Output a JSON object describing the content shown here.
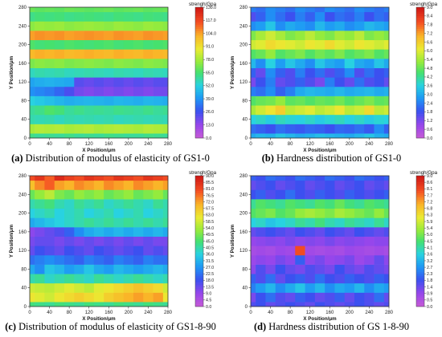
{
  "chart_data": [
    {
      "type": "heatmap",
      "panel_label": "(a)",
      "caption": "Distribution of modulus of elasticity of GS1-0",
      "xlabel": "X Position/μm",
      "ylabel": "Y Position/μm",
      "colorbar_title": "strengh/Gpa",
      "x_ticks": [
        "0",
        "40",
        "80",
        "120",
        "160",
        "200",
        "240",
        "280"
      ],
      "y_ticks": [
        "0",
        "40",
        "80",
        "120",
        "160",
        "200",
        "240",
        "280"
      ],
      "colorbar_ticks": [
        "0.0",
        "13.0",
        "26.0",
        "39.0",
        "52.0",
        "65.0",
        "78.0",
        "91.0",
        "104.0",
        "117.0",
        "130.0"
      ],
      "vmin": 0,
      "vmax": 130,
      "x": [
        0,
        20,
        40,
        60,
        80,
        100,
        120,
        140,
        160,
        180,
        200,
        220,
        240,
        260,
        280
      ],
      "y": [
        0,
        20,
        40,
        60,
        80,
        100,
        120,
        140,
        160,
        180,
        200,
        220,
        240,
        260,
        280
      ],
      "z": [
        [
          62,
          60,
          61,
          60,
          62,
          60,
          61,
          60,
          62,
          61,
          60,
          60,
          62,
          61,
          60
        ],
        [
          78,
          80,
          79,
          80,
          78,
          79,
          80,
          78,
          79,
          80,
          79,
          78,
          80,
          79,
          78
        ],
        [
          58,
          57,
          58,
          56,
          58,
          57,
          58,
          57,
          58,
          56,
          57,
          58,
          57,
          58,
          57
        ],
        [
          60,
          62,
          66,
          64,
          60,
          62,
          60,
          61,
          60,
          62,
          61,
          60,
          62,
          60,
          61
        ],
        [
          52,
          50,
          48,
          46,
          44,
          45,
          46,
          45,
          44,
          46,
          45,
          44,
          46,
          45,
          44
        ],
        [
          38,
          36,
          34,
          30,
          24,
          18,
          16,
          18,
          16,
          18,
          16,
          18,
          16,
          18,
          18
        ],
        [
          42,
          44,
          45,
          44,
          43,
          22,
          20,
          22,
          20,
          22,
          20,
          22,
          20,
          22,
          22
        ],
        [
          56,
          58,
          57,
          58,
          56,
          57,
          58,
          57,
          56,
          58,
          57,
          56,
          58,
          57,
          56
        ],
        [
          72,
          74,
          73,
          74,
          72,
          73,
          74,
          73,
          72,
          74,
          73,
          72,
          74,
          73,
          72
        ],
        [
          100,
          102,
          101,
          102,
          100,
          101,
          102,
          101,
          100,
          102,
          101,
          100,
          102,
          101,
          100
        ],
        [
          66,
          64,
          65,
          64,
          66,
          65,
          64,
          65,
          66,
          64,
          65,
          66,
          64,
          65,
          66
        ],
        [
          104,
          106,
          105,
          106,
          104,
          105,
          106,
          105,
          104,
          106,
          105,
          104,
          106,
          105,
          104
        ],
        [
          74,
          76,
          75,
          76,
          74,
          75,
          76,
          75,
          74,
          76,
          75,
          74,
          76,
          75,
          74
        ],
        [
          62,
          64,
          63,
          64,
          62,
          63,
          64,
          63,
          62,
          64,
          63,
          62,
          64,
          63,
          62
        ],
        [
          70,
          68,
          69,
          68,
          70,
          69,
          68,
          69,
          70,
          68,
          69,
          70,
          68,
          69,
          70
        ]
      ]
    },
    {
      "type": "heatmap",
      "panel_label": "(b)",
      "caption": "Hardness distribution of GS1-0",
      "xlabel": "X Position/μm",
      "ylabel": "Y Position/μm",
      "colorbar_title": "strengh/Gpa",
      "x_ticks": [
        "0",
        "40",
        "80",
        "120",
        "160",
        "200",
        "240",
        "280"
      ],
      "y_ticks": [
        "0",
        "40",
        "80",
        "120",
        "160",
        "200",
        "240",
        "280"
      ],
      "colorbar_ticks": [
        "0.0",
        "0.6",
        "1.2",
        "1.8",
        "2.4",
        "3.0",
        "3.6",
        "4.2",
        "4.8",
        "5.4",
        "6.0",
        "6.6",
        "7.2",
        "7.8",
        "8.4",
        "9.0"
      ],
      "vmin": 0,
      "vmax": 9,
      "x": [
        0,
        20,
        40,
        60,
        80,
        100,
        120,
        140,
        160,
        180,
        200,
        220,
        240,
        260,
        280
      ],
      "y": [
        0,
        20,
        40,
        60,
        80,
        100,
        120,
        140,
        160,
        180,
        200,
        220,
        240,
        260,
        280
      ],
      "z": [
        [
          3.0,
          3.2,
          3.1,
          3.4,
          3.2,
          3.0,
          3.1,
          3.3,
          3.2,
          3.1,
          3.0,
          3.2,
          3.4,
          3.1,
          3.0
        ],
        [
          2.2,
          2.0,
          1.8,
          2.2,
          2.0,
          1.9,
          2.1,
          2.0,
          1.8,
          2.1,
          2.0,
          2.2,
          1.9,
          2.6,
          2.0
        ],
        [
          3.6,
          3.8,
          3.5,
          3.9,
          3.7,
          3.6,
          3.8,
          3.5,
          3.7,
          3.9,
          3.6,
          3.8,
          3.5,
          3.7,
          3.6
        ],
        [
          5.4,
          5.8,
          6.2,
          6.6,
          5.6,
          5.8,
          6.0,
          5.6,
          5.8,
          6.2,
          5.6,
          5.8,
          6.4,
          5.6,
          5.8
        ],
        [
          4.6,
          4.8,
          4.9,
          5.2,
          4.7,
          4.8,
          4.6,
          4.8,
          4.7,
          4.9,
          4.6,
          4.8,
          5.0,
          4.7,
          4.8
        ],
        [
          2.4,
          2.2,
          2.6,
          2.0,
          2.4,
          3.0,
          3.2,
          3.1,
          3.0,
          3.2,
          3.0,
          3.1,
          3.2,
          3.0,
          3.1
        ],
        [
          1.2,
          1.8,
          2.4,
          1.4,
          1.6,
          2.0,
          1.6,
          1.2,
          2.4,
          1.8,
          1.4,
          2.2,
          1.6,
          1.8,
          1.4
        ],
        [
          2.0,
          1.4,
          2.6,
          2.0,
          1.6,
          2.4,
          1.8,
          2.2,
          1.6,
          2.0,
          2.6,
          1.6,
          2.2,
          1.8,
          2.0
        ],
        [
          3.2,
          2.6,
          3.6,
          2.8,
          3.4,
          3.0,
          2.6,
          3.4,
          3.0,
          2.8,
          3.6,
          3.0,
          2.8,
          3.4,
          3.0
        ],
        [
          4.6,
          4.8,
          5.2,
          4.6,
          4.8,
          5.0,
          4.6,
          4.9,
          4.7,
          5.0,
          4.6,
          4.8,
          5.0,
          4.6,
          4.8
        ],
        [
          5.8,
          6.0,
          6.4,
          6.2,
          6.0,
          5.8,
          6.2,
          6.0,
          6.4,
          6.0,
          5.8,
          6.2,
          6.0,
          5.8,
          6.0
        ],
        [
          5.0,
          5.4,
          5.8,
          5.4,
          5.0,
          5.2,
          5.6,
          5.2,
          5.0,
          5.4,
          5.2,
          5.6,
          5.0,
          5.2,
          5.0
        ],
        [
          2.6,
          2.8,
          3.4,
          2.6,
          3.0,
          2.8,
          2.6,
          3.2,
          2.8,
          3.0,
          2.6,
          2.8,
          3.2,
          3.0,
          2.8
        ],
        [
          1.6,
          2.0,
          2.6,
          2.2,
          1.8,
          2.4,
          2.0,
          2.6,
          1.8,
          2.2,
          2.0,
          2.4,
          1.8,
          2.2,
          2.0
        ],
        [
          2.4,
          2.2,
          2.6,
          2.4,
          2.2,
          2.6,
          2.4,
          2.2,
          2.6,
          2.4,
          2.2,
          2.6,
          2.4,
          2.2,
          2.4
        ]
      ]
    },
    {
      "type": "heatmap",
      "panel_label": "(c)",
      "caption": "Distribution of modulus of elasticity of GS1-8-90",
      "xlabel": "X Position/μm",
      "ylabel": "Y Position/μm",
      "colorbar_title": "strengh/Gpa",
      "x_ticks": [
        "0",
        "40",
        "80",
        "120",
        "160",
        "200",
        "240",
        "280"
      ],
      "y_ticks": [
        "0",
        "40",
        "80",
        "120",
        "160",
        "200",
        "240",
        "280"
      ],
      "colorbar_ticks": [
        "0.0",
        "4.5",
        "9.0",
        "13.5",
        "18.0",
        "22.5",
        "27.0",
        "31.5",
        "36.0",
        "40.5",
        "45.0",
        "49.5",
        "54.0",
        "58.5",
        "63.0",
        "67.5",
        "72.0",
        "76.5",
        "81.0",
        "85.5",
        "90.0"
      ],
      "vmin": 0,
      "vmax": 90,
      "x": [
        0,
        20,
        40,
        60,
        80,
        100,
        120,
        140,
        160,
        180,
        200,
        220,
        240,
        260,
        280
      ],
      "y": [
        0,
        20,
        40,
        60,
        80,
        100,
        120,
        140,
        160,
        180,
        200,
        220,
        240,
        260,
        280
      ],
      "z": [
        [
          44,
          43,
          42,
          44,
          43,
          42,
          44,
          43,
          42,
          44,
          43,
          42,
          44,
          43,
          42
        ],
        [
          62,
          60,
          58,
          62,
          64,
          66,
          64,
          62,
          66,
          68,
          70,
          72,
          70,
          72,
          62
        ],
        [
          58,
          57,
          56,
          58,
          60,
          58,
          56,
          60,
          62,
          64,
          66,
          68,
          66,
          64,
          58
        ],
        [
          40,
          42,
          38,
          40,
          42,
          40,
          38,
          42,
          40,
          38,
          40,
          42,
          40,
          38,
          40
        ],
        [
          30,
          26,
          34,
          32,
          28,
          30,
          34,
          30,
          28,
          32,
          30,
          28,
          30,
          32,
          30
        ],
        [
          22,
          24,
          26,
          24,
          22,
          20,
          24,
          22,
          20,
          24,
          22,
          20,
          24,
          22,
          22
        ],
        [
          14,
          18,
          16,
          14,
          18,
          16,
          14,
          18,
          16,
          14,
          16,
          18,
          14,
          16,
          14
        ],
        [
          12,
          14,
          14,
          12,
          14,
          12,
          14,
          12,
          14,
          12,
          14,
          12,
          14,
          12,
          12
        ],
        [
          10,
          12,
          14,
          16,
          20,
          26,
          30,
          32,
          30,
          32,
          30,
          32,
          30,
          32,
          30
        ],
        [
          30,
          32,
          34,
          36,
          38,
          40,
          42,
          40,
          42,
          40,
          42,
          40,
          42,
          40,
          42
        ],
        [
          36,
          38,
          40,
          36,
          38,
          40,
          36,
          38,
          40,
          36,
          38,
          40,
          36,
          38,
          40
        ],
        [
          40,
          42,
          44,
          40,
          38,
          42,
          40,
          42,
          38,
          40,
          42,
          40,
          38,
          42,
          40
        ],
        [
          48,
          52,
          56,
          50,
          48,
          52,
          50,
          52,
          48,
          50,
          52,
          48,
          50,
          52,
          48
        ],
        [
          68,
          74,
          78,
          72,
          70,
          74,
          72,
          70,
          74,
          72,
          70,
          74,
          72,
          70,
          72
        ],
        [
          80,
          84,
          78,
          86,
          82,
          80,
          84,
          82,
          80,
          84,
          82,
          80,
          84,
          82,
          80
        ]
      ]
    },
    {
      "type": "heatmap",
      "panel_label": "(d)",
      "caption": "Hardness distribution of GS 1-8-90",
      "xlabel": "X Position/μm",
      "ylabel": "Y Position/μm",
      "colorbar_title": "strengh/Gpa",
      "x_ticks": [
        "0",
        "40",
        "80",
        "120",
        "160",
        "200",
        "240",
        "280"
      ],
      "y_ticks": [
        "0",
        "40",
        "80",
        "120",
        "160",
        "200",
        "240",
        "280"
      ],
      "colorbar_ticks": [
        "0.0",
        "0.5",
        "0.9",
        "1.4",
        "1.8",
        "2.3",
        "2.7",
        "3.2",
        "3.6",
        "4.1",
        "4.5",
        "5.0",
        "5.4",
        "5.9",
        "6.3",
        "6.8",
        "7.2",
        "7.7",
        "8.1",
        "8.6",
        "9.0"
      ],
      "vmin": 0,
      "vmax": 9,
      "x": [
        0,
        20,
        40,
        60,
        80,
        100,
        120,
        140,
        160,
        180,
        200,
        220,
        240,
        260,
        280
      ],
      "y": [
        0,
        20,
        40,
        60,
        80,
        100,
        120,
        140,
        160,
        180,
        200,
        220,
        240,
        260,
        280
      ],
      "z": [
        [
          1.6,
          1.8,
          1.4,
          1.6,
          1.8,
          1.6,
          1.4,
          1.8,
          1.6,
          1.4,
          1.6,
          1.8,
          1.6,
          1.4,
          1.6
        ],
        [
          1.2,
          1.8,
          2.2,
          1.6,
          1.4,
          2.0,
          1.8,
          1.4,
          1.6,
          2.0,
          1.4,
          1.8,
          1.6,
          2.2,
          1.4
        ],
        [
          2.4,
          2.8,
          3.2,
          2.6,
          3.0,
          3.4,
          2.8,
          3.2,
          2.6,
          3.0,
          2.8,
          3.2,
          2.6,
          3.0,
          2.8
        ],
        [
          2.0,
          1.6,
          2.2,
          1.4,
          1.8,
          2.0,
          1.6,
          2.2,
          1.8,
          1.6,
          2.0,
          1.8,
          1.6,
          2.0,
          1.8
        ],
        [
          1.0,
          1.6,
          1.2,
          1.8,
          1.4,
          1.2,
          1.6,
          1.4,
          1.2,
          1.8,
          1.4,
          1.2,
          1.6,
          1.4,
          1.2
        ],
        [
          0.8,
          1.0,
          0.9,
          1.2,
          1.0,
          2.0,
          1.0,
          1.2,
          0.9,
          1.0,
          1.2,
          0.8,
          1.0,
          1.4,
          1.0
        ],
        [
          0.6,
          0.7,
          0.6,
          0.8,
          0.7,
          8.0,
          0.7,
          0.6,
          0.7,
          0.6,
          0.8,
          0.7,
          0.6,
          0.7,
          0.6
        ],
        [
          0.9,
          1.0,
          1.1,
          1.0,
          1.2,
          1.0,
          1.1,
          1.0,
          1.2,
          1.0,
          1.1,
          1.0,
          0.9,
          1.0,
          1.0
        ],
        [
          1.4,
          1.6,
          1.8,
          1.6,
          1.4,
          1.8,
          1.6,
          1.4,
          1.8,
          1.6,
          1.4,
          1.8,
          1.6,
          1.4,
          1.6
        ],
        [
          3.6,
          3.8,
          3.4,
          3.6,
          3.8,
          4.2,
          4.0,
          4.4,
          4.0,
          3.8,
          4.2,
          4.0,
          3.8,
          4.2,
          3.8
        ],
        [
          4.6,
          4.8,
          5.0,
          4.6,
          4.8,
          5.2,
          5.4,
          5.2,
          5.0,
          5.4,
          5.2,
          5.0,
          4.8,
          5.2,
          4.8
        ],
        [
          4.2,
          4.6,
          4.4,
          4.2,
          4.6,
          4.4,
          4.2,
          4.6,
          4.4,
          4.8,
          4.4,
          4.2,
          4.6,
          4.4,
          4.2
        ],
        [
          1.8,
          2.0,
          1.6,
          1.8,
          2.2,
          1.8,
          1.6,
          2.0,
          1.8,
          1.6,
          2.0,
          1.8,
          1.6,
          1.8,
          2.0
        ],
        [
          1.4,
          1.6,
          1.8,
          1.4,
          1.6,
          1.8,
          1.4,
          1.6,
          1.8,
          1.4,
          1.6,
          1.8,
          1.4,
          1.6,
          1.4
        ],
        [
          2.0,
          1.8,
          2.2,
          2.0,
          1.8,
          2.2,
          2.0,
          1.8,
          2.2,
          2.0,
          1.8,
          2.2,
          2.0,
          1.8,
          2.0
        ]
      ]
    }
  ]
}
